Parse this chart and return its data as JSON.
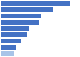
{
  "values": [
    255,
    192,
    148,
    143,
    105,
    97,
    74,
    55,
    48
  ],
  "bar_colors": [
    "#4472C4",
    "#4472C4",
    "#4472C4",
    "#4472C4",
    "#4472C4",
    "#4472C4",
    "#4472C4",
    "#4472C4",
    "#a8c4e8"
  ],
  "xlim": [
    0,
    290
  ],
  "background_color": "#ffffff",
  "bar_height": 0.82,
  "figwidth": 1.0,
  "figheight": 0.71,
  "dpi": 100
}
